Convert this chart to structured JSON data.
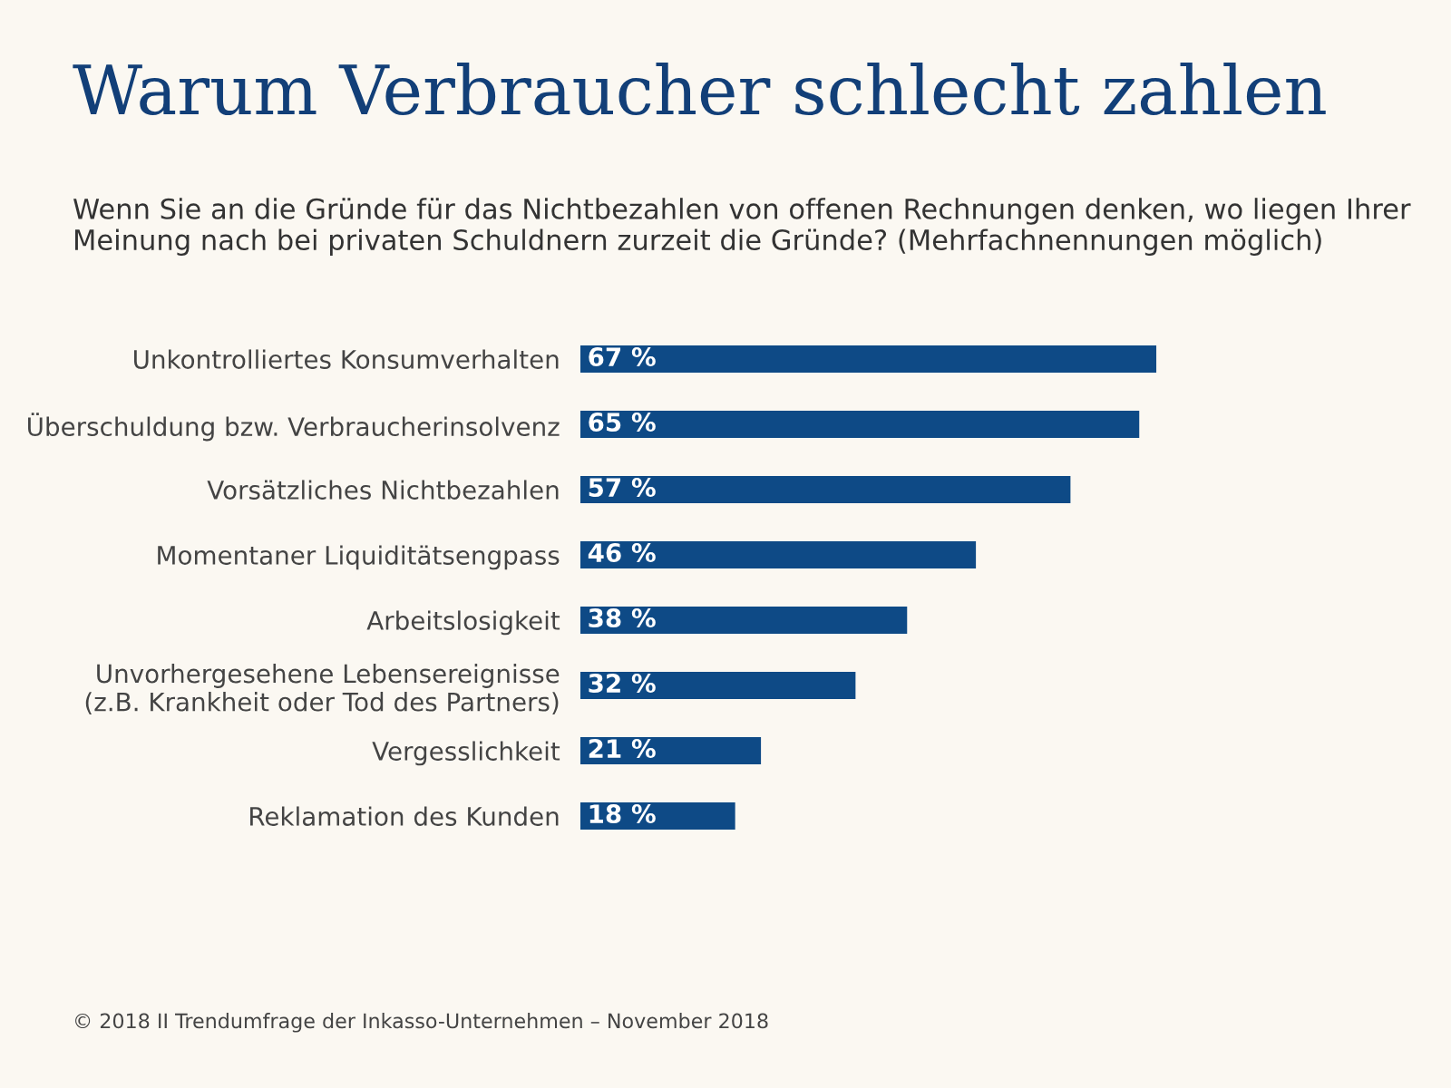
{
  "chart_data": {
    "type": "bar",
    "orientation": "horizontal",
    "title": "Warum Verbraucher schlecht zahlen",
    "subtitle": "Wenn Sie an die Gründe für das Nichtbezahlen von offenen Rechnungen denken, wo liegen Ihrer Meinung nach bei privaten Schuldnern zurzeit die Gründe? (Mehrfachnennungen möglich)",
    "categories": [
      "Unkontrolliertes Konsumverhalten",
      "Überschuldung bzw. Verbraucherinsolvenz",
      "Vorsätzliches Nichtbezahlen",
      "Momentaner Liquiditätsengpass",
      "Arbeitslosigkeit",
      "Unvorhergesehene Lebensereignisse\n(z.B. Krankheit oder Tod des Partners)",
      "Vergesslichkeit",
      "Reklamation des Kunden"
    ],
    "values": [
      67,
      65,
      57,
      46,
      38,
      32,
      21,
      18
    ],
    "value_labels": [
      "67 %",
      "65 %",
      "57 %",
      "46 %",
      "38 %",
      "32 %",
      "21 %",
      "18 %"
    ],
    "color": "#0e4a86",
    "tick_labels": "y",
    "grid": false,
    "legend": false,
    "annotations": [
      "© 2018 II Trendumfrage der Inkasso-Unternehmen – November 2018"
    ]
  }
}
